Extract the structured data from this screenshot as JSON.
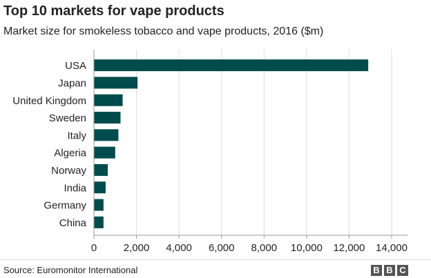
{
  "title": "Top 10 markets for vape products",
  "subtitle": "Market size for smokeless tobacco and vape products, 2016 ($m)",
  "source": "Source: Euromonitor International",
  "logo": "BBC",
  "colors": {
    "bar": "#004b4b",
    "grid": "#dddddd",
    "axis": "#999999",
    "text": "#222222"
  },
  "chart_data": {
    "type": "bar",
    "orientation": "horizontal",
    "categories": [
      "USA",
      "Japan",
      "United Kingdom",
      "Sweden",
      "Italy",
      "Algeria",
      "Norway",
      "India",
      "Germany",
      "China"
    ],
    "values": [
      12900,
      2050,
      1350,
      1250,
      1150,
      1000,
      650,
      550,
      450,
      450
    ],
    "xlim": [
      0,
      14000
    ],
    "xticks": [
      0,
      2000,
      4000,
      6000,
      8000,
      10000,
      12000,
      14000
    ],
    "xtick_labels": [
      "0",
      "2,000",
      "4,000",
      "6,000",
      "8,000",
      "10,000",
      "12,000",
      "14,000"
    ],
    "grid": true
  }
}
